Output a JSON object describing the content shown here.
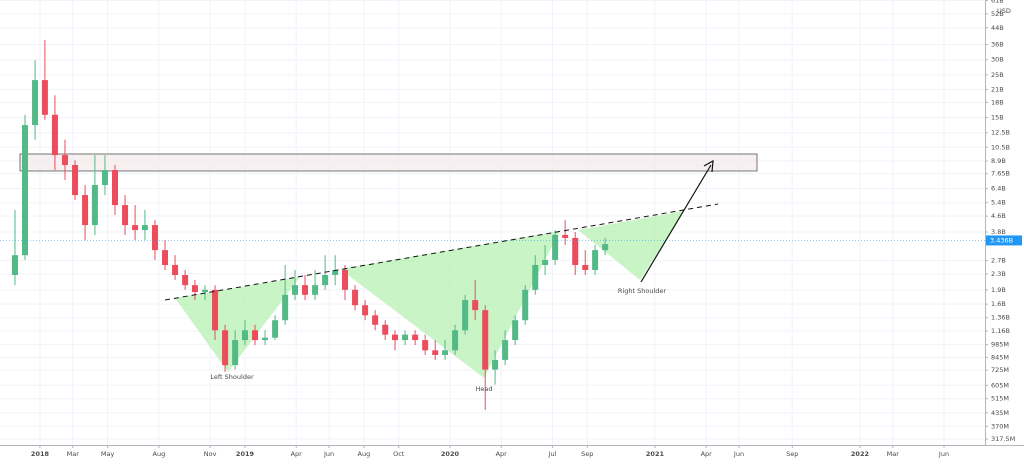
{
  "chart_data": {
    "type": "candlestick",
    "y_scale": "log",
    "grid": true,
    "currency": "USD",
    "up_color": "#53b987",
    "down_color": "#eb4d5c",
    "xlim": [
      2017.805,
      2022.61
    ],
    "ylim": [
      295600000.0,
      61400000000.0
    ],
    "x": [
      2017.878,
      2017.927,
      2017.976,
      2018.024,
      2018.073,
      2018.122,
      2018.171,
      2018.22,
      2018.268,
      2018.317,
      2018.366,
      2018.415,
      2018.464,
      2018.512,
      2018.561,
      2018.61,
      2018.659,
      2018.708,
      2018.756,
      2018.805,
      2018.854,
      2018.903,
      2018.952,
      2019.0,
      2019.049,
      2019.098,
      2019.147,
      2019.196,
      2019.244,
      2019.293,
      2019.342,
      2019.391,
      2019.44,
      2019.488,
      2019.537,
      2019.586,
      2019.635,
      2019.684,
      2019.732,
      2019.781,
      2019.83,
      2019.879,
      2019.928,
      2019.976,
      2020.025,
      2020.074,
      2020.123,
      2020.172,
      2020.22,
      2020.269,
      2020.318,
      2020.367,
      2020.416,
      2020.464,
      2020.513,
      2020.562,
      2020.611,
      2020.66,
      2020.708,
      2020.757
    ],
    "open": [
      2270000000.0,
      2880000000.0,
      13700000000.0,
      23500000000.0,
      15500000000.0,
      9560000000.0,
      8490000000.0,
      5920000000.0,
      4130000000.0,
      6680000000.0,
      7990000000.0,
      5250000000.0,
      4130000000.0,
      3890000000.0,
      4130000000.0,
      3060000000.0,
      2560000000.0,
      2270000000.0,
      2010000000.0,
      1850000000.0,
      1900000000.0,
      1170000000.0,
      770000000.0,
      1040000000.0,
      1170000000.0,
      1040000000.0,
      1070000000.0,
      1320000000.0,
      1790000000.0,
      2010000000.0,
      1790000000.0,
      2010000000.0,
      2270000000.0,
      2410000000.0,
      1900000000.0,
      1580000000.0,
      1400000000.0,
      1250000000.0,
      1110000000.0,
      1040000000.0,
      1110000000.0,
      1040000000.0,
      920000000.0,
      870000000.0,
      920000000.0,
      1170000000.0,
      1680000000.0,
      1490000000.0,
      730000000.0,
      820000000.0,
      1040000000.0,
      1320000000.0,
      1900000000.0,
      2560000000.0,
      2720000000.0,
      3670000000.0,
      3540000000.0,
      2560000000.0,
      2410000000.0,
      3060000000.0
    ],
    "high": [
      4950000000.0,
      15500000000.0,
      29900000000.0,
      38000000000.0,
      19600000000.0,
      11500000000.0,
      9000000000.0,
      6680000000.0,
      9560000000.0,
      9560000000.0,
      8490000000.0,
      5920000000.0,
      5250000000.0,
      4950000000.0,
      4390000000.0,
      3450000000.0,
      2880000000.0,
      2410000000.0,
      2140000000.0,
      2010000000.0,
      2010000000.0,
      1250000000.0,
      1170000000.0,
      1320000000.0,
      1250000000.0,
      1170000000.0,
      1400000000.0,
      2560000000.0,
      2410000000.0,
      2270000000.0,
      2410000000.0,
      2880000000.0,
      2880000000.0,
      2560000000.0,
      2010000000.0,
      1680000000.0,
      1490000000.0,
      1320000000.0,
      1170000000.0,
      1170000000.0,
      1170000000.0,
      1110000000.0,
      1040000000.0,
      1040000000.0,
      1250000000.0,
      1790000000.0,
      2140000000.0,
      1580000000.0,
      920000000.0,
      1170000000.0,
      1400000000.0,
      2010000000.0,
      2880000000.0,
      3250000000.0,
      3890000000.0,
      4390000000.0,
      3800000000.0,
      3060000000.0,
      3250000000.0,
      3540000000.0
    ],
    "low": [
      2010000000.0,
      2720000000.0,
      11500000000.0,
      14600000000.0,
      7990000000.0,
      7100000000.0,
      5580000000.0,
      3450000000.0,
      3670000000.0,
      5920000000.0,
      4660000000.0,
      3670000000.0,
      3450000000.0,
      3450000000.0,
      2720000000.0,
      2410000000.0,
      2140000000.0,
      1900000000.0,
      1680000000.0,
      1680000000.0,
      1040000000.0,
      710000000.0,
      730000000.0,
      980000000.0,
      980000000.0,
      980000000.0,
      1040000000.0,
      1250000000.0,
      1680000000.0,
      1680000000.0,
      1680000000.0,
      1900000000.0,
      2010000000.0,
      1680000000.0,
      1490000000.0,
      1320000000.0,
      1170000000.0,
      1040000000.0,
      920000000.0,
      980000000.0,
      980000000.0,
      870000000.0,
      820000000.0,
      820000000.0,
      870000000.0,
      1110000000.0,
      1320000000.0,
      450000000.0,
      610000000.0,
      770000000.0,
      980000000.0,
      1250000000.0,
      1790000000.0,
      2270000000.0,
      2560000000.0,
      3250000000.0,
      2270000000.0,
      2270000000.0,
      2270000000.0,
      2880000000.0
    ],
    "close": [
      2880000000.0,
      13700000000.0,
      23500000000.0,
      15500000000.0,
      9560000000.0,
      8490000000.0,
      5920000000.0,
      4130000000.0,
      6680000000.0,
      7990000000.0,
      5250000000.0,
      4130000000.0,
      3890000000.0,
      4130000000.0,
      3060000000.0,
      2560000000.0,
      2270000000.0,
      2010000000.0,
      1850000000.0,
      1900000000.0,
      1170000000.0,
      770000000.0,
      1040000000.0,
      1170000000.0,
      1040000000.0,
      1070000000.0,
      1320000000.0,
      1790000000.0,
      2010000000.0,
      1790000000.0,
      2010000000.0,
      2270000000.0,
      2410000000.0,
      1900000000.0,
      1580000000.0,
      1400000000.0,
      1250000000.0,
      1110000000.0,
      1040000000.0,
      1110000000.0,
      1040000000.0,
      920000000.0,
      870000000.0,
      920000000.0,
      1170000000.0,
      1680000000.0,
      1490000000.0,
      730000000.0,
      820000000.0,
      1040000000.0,
      1320000000.0,
      1900000000.0,
      2560000000.0,
      2720000000.0,
      3670000000.0,
      3540000000.0,
      2560000000.0,
      2410000000.0,
      3060000000.0,
      3290000000.0
    ],
    "last_price": {
      "value": 3436000000.0,
      "label": "3.436B"
    },
    "yticks": [
      {
        "value": 61000000000.0,
        "label": "61B"
      },
      {
        "value": 52000000000.0,
        "label": "52B"
      },
      {
        "value": 44000000000.0,
        "label": "44B"
      },
      {
        "value": 36000000000.0,
        "label": "36B"
      },
      {
        "value": 30000000000.0,
        "label": "30B"
      },
      {
        "value": 25000000000.0,
        "label": "25B"
      },
      {
        "value": 21000000000.0,
        "label": "21B"
      },
      {
        "value": 18000000000.0,
        "label": "18B"
      },
      {
        "value": 15000000000.0,
        "label": "15B"
      },
      {
        "value": 12500000000.0,
        "label": "12.5B"
      },
      {
        "value": 10500000000.0,
        "label": "10.5B"
      },
      {
        "value": 8900000000.0,
        "label": "8.9B"
      },
      {
        "value": 7650000000.0,
        "label": "7.65B"
      },
      {
        "value": 6400000000.0,
        "label": "6.4B"
      },
      {
        "value": 5400000000.0,
        "label": "5.4B"
      },
      {
        "value": 4600000000.0,
        "label": "4.6B"
      },
      {
        "value": 3800000000.0,
        "label": "3.8B"
      },
      {
        "value": 2700000000.0,
        "label": "2.7B"
      },
      {
        "value": 2300000000.0,
        "label": "2.3B"
      },
      {
        "value": 1900000000.0,
        "label": "1.9B"
      },
      {
        "value": 1600000000.0,
        "label": "1.6B"
      },
      {
        "value": 1360000000.0,
        "label": "1.36B"
      },
      {
        "value": 1160000000.0,
        "label": "1.16B"
      },
      {
        "value": 985000000.0,
        "label": "985M"
      },
      {
        "value": 845000000.0,
        "label": "845M"
      },
      {
        "value": 725000000.0,
        "label": "725M"
      },
      {
        "value": 605000000.0,
        "label": "605M"
      },
      {
        "value": 515000000.0,
        "label": "515M"
      },
      {
        "value": 435000000.0,
        "label": "435M"
      },
      {
        "value": 370000000.0,
        "label": "370M"
      },
      {
        "value": 317500000.0,
        "label": "317.5M"
      }
    ],
    "xticks": [
      2018,
      {
        "value": 2018.16,
        "label": "Mar"
      },
      {
        "value": 2018.33,
        "label": "May"
      },
      {
        "value": 2018.58,
        "label": "Aug"
      },
      {
        "value": 2018.83,
        "label": "Nov"
      },
      2019,
      {
        "value": 2019.25,
        "label": "Apr"
      },
      {
        "value": 2019.41,
        "label": "Jun"
      },
      {
        "value": 2019.58,
        "label": "Aug"
      },
      {
        "value": 2019.75,
        "label": "Oct"
      },
      2020,
      {
        "value": 2020.25,
        "label": "Apr"
      },
      {
        "value": 2020.5,
        "label": "Jul"
      },
      {
        "value": 2020.67,
        "label": "Sep"
      },
      2021,
      {
        "value": 2021.25,
        "label": "Apr"
      },
      {
        "value": 2021.41,
        "label": "Jun"
      },
      {
        "value": 2021.67,
        "label": "Sep"
      },
      2022,
      {
        "value": 2022.16,
        "label": "Mar"
      },
      {
        "value": 2022.41,
        "label": "Jun"
      }
    ],
    "annotations": [
      "Left Shoulder",
      "Head",
      "Right Shoulder"
    ]
  }
}
